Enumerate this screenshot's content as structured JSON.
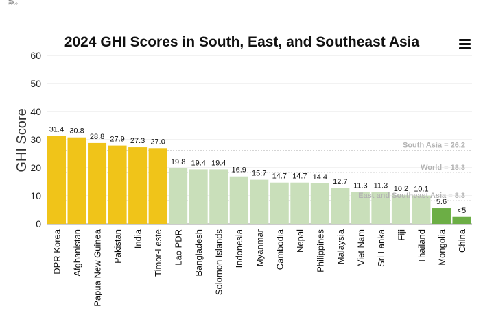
{
  "corner_text": "致。",
  "chart_data": {
    "type": "bar",
    "title": "2024 GHI Scores in South, East, and Southeast Asia",
    "xlabel": "",
    "ylabel": "GHI Score",
    "ylim": [
      0,
      60
    ],
    "yticks": [
      0,
      10,
      20,
      30,
      40,
      50,
      60
    ],
    "categories": [
      "DPR Korea",
      "Afghanistan",
      "Papua New Guinea",
      "Pakistan",
      "India",
      "Timor-Leste",
      "Lao PDR",
      "Bangladesh",
      "Solomon Islands",
      "Indonesia",
      "Myanmar",
      "Cambodia",
      "Nepal",
      "Philippines",
      "Malaysia",
      "Viet Nam",
      "Sri Lanka",
      "Fiji",
      "Thailand",
      "Mongolia",
      "China"
    ],
    "values": [
      31.4,
      30.8,
      28.8,
      27.9,
      27.3,
      27.0,
      19.8,
      19.4,
      19.4,
      16.9,
      15.7,
      14.7,
      14.7,
      14.4,
      12.7,
      11.3,
      11.3,
      10.2,
      10.1,
      5.6,
      2.5
    ],
    "value_labels": [
      "31.4",
      "30.8",
      "28.8",
      "27.9",
      "27.3",
      "27.0",
      "19.8",
      "19.4",
      "19.4",
      "16.9",
      "15.7",
      "14.7",
      "14.7",
      "14.4",
      "12.7",
      "11.3",
      "11.3",
      "10.2",
      "10.1",
      "5.6",
      "<5"
    ],
    "bar_colors": [
      "#f0c419",
      "#f0c419",
      "#f0c419",
      "#f0c419",
      "#f0c419",
      "#f0c419",
      "#c9dfba",
      "#c9dfba",
      "#c9dfba",
      "#c9dfba",
      "#c9dfba",
      "#c9dfba",
      "#c9dfba",
      "#c9dfba",
      "#c9dfba",
      "#c9dfba",
      "#c9dfba",
      "#c9dfba",
      "#c9dfba",
      "#6cae45",
      "#6cae45"
    ],
    "reference_lines": [
      {
        "label": "South Asia = 26.2",
        "value": 26.2
      },
      {
        "label": "World = 18.3",
        "value": 18.3
      },
      {
        "label": "East and Southeast Asia = 8.3",
        "value": 8.3
      }
    ],
    "grid": true,
    "legend": "none"
  }
}
